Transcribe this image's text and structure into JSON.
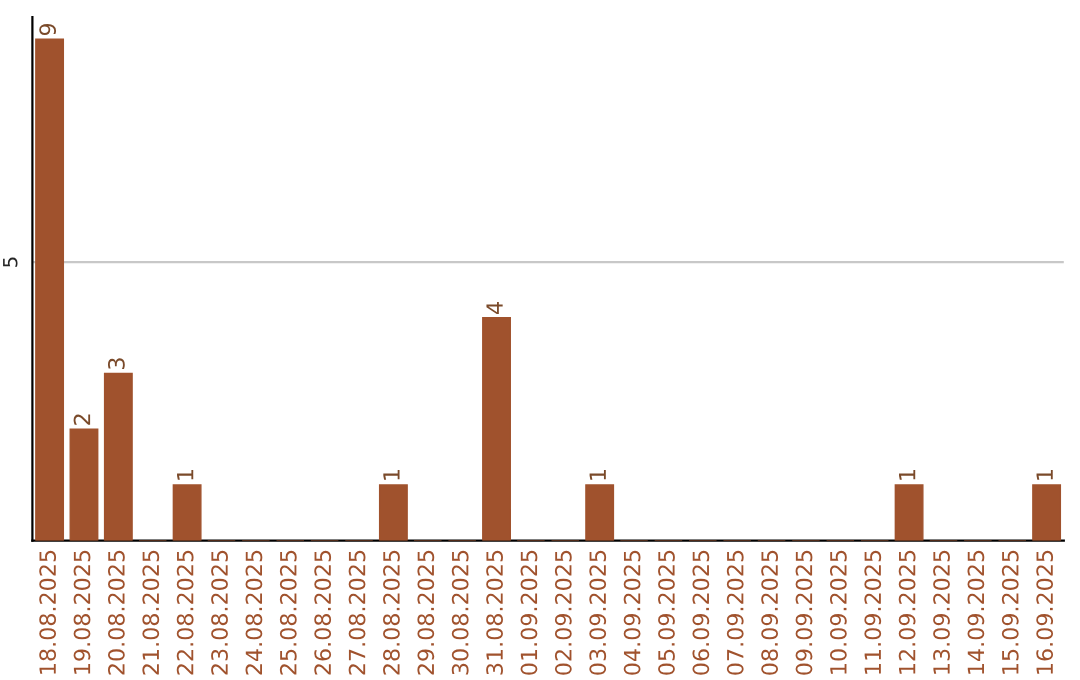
{
  "chart_data": {
    "type": "bar",
    "categories": [
      "18.08.2025",
      "19.08.2025",
      "20.08.2025",
      "21.08.2025",
      "22.08.2025",
      "23.08.2025",
      "24.08.2025",
      "25.08.2025",
      "26.08.2025",
      "27.08.2025",
      "28.08.2025",
      "29.08.2025",
      "30.08.2025",
      "31.08.2025",
      "01.09.2025",
      "02.09.2025",
      "03.09.2025",
      "04.09.2025",
      "05.09.2025",
      "06.09.2025",
      "07.09.2025",
      "08.09.2025",
      "09.09.2025",
      "10.09.2025",
      "11.09.2025",
      "12.09.2025",
      "13.09.2025",
      "14.09.2025",
      "15.09.2025",
      "16.09.2025"
    ],
    "values": [
      9,
      2,
      3,
      0,
      1,
      0,
      0,
      0,
      0,
      0,
      1,
      0,
      0,
      4,
      0,
      0,
      1,
      0,
      0,
      0,
      0,
      0,
      0,
      0,
      0,
      1,
      0,
      0,
      0,
      1
    ],
    "value_labels": [
      "9",
      "2",
      "3",
      null,
      "1",
      null,
      null,
      null,
      null,
      null,
      "1",
      null,
      null,
      "4",
      null,
      null,
      "1",
      null,
      null,
      null,
      null,
      null,
      null,
      null,
      null,
      "1",
      null,
      null,
      null,
      "1"
    ],
    "color": "#a0522d",
    "ylim": [
      0,
      9.4
    ],
    "yticks": [
      5
    ],
    "grid": "y"
  }
}
